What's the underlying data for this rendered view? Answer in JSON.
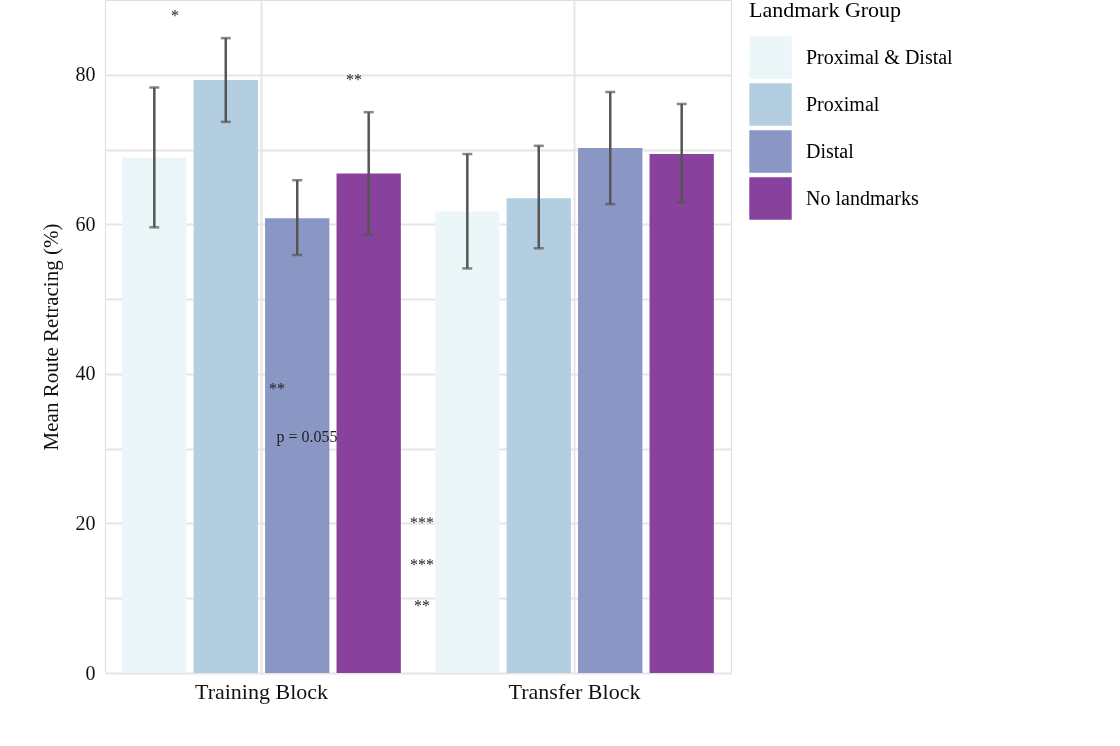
{
  "chart_data": {
    "type": "bar",
    "ylabel": "Mean Route Retracing (%)",
    "legend_title": "Landmark Group",
    "categories": [
      "Training Block",
      "Transfer Block"
    ],
    "series": [
      {
        "name": "Proximal & Distal",
        "color": "#ebf6f9",
        "values": [
          68.9,
          61.7
        ],
        "errors": [
          [
            59.6,
            78.3
          ],
          [
            54.1,
            69.4
          ]
        ]
      },
      {
        "name": "Proximal",
        "color": "#b3cde1",
        "values": [
          79.3,
          63.5
        ],
        "errors": [
          [
            73.7,
            84.9
          ],
          [
            56.8,
            70.5
          ]
        ]
      },
      {
        "name": "Distal",
        "color": "#8a96c4",
        "values": [
          60.8,
          70.2
        ],
        "errors": [
          [
            55.9,
            65.9
          ],
          [
            62.7,
            77.7
          ]
        ]
      },
      {
        "name": "No landmarks",
        "color": "#88419d",
        "values": [
          66.8,
          69.4
        ],
        "errors": [
          [
            58.6,
            75.0
          ],
          [
            62.9,
            76.1
          ]
        ]
      }
    ],
    "ylim": [
      0,
      90
    ],
    "yticks": [
      0,
      {
        "value": 10,
        "label": null
      },
      20,
      {
        "value": 30,
        "label": null
      },
      40,
      {
        "value": 50,
        "label": null
      },
      60,
      {
        "value": 70,
        "label": null
      },
      80
    ],
    "grid": true,
    "legend": "right",
    "annotations": [
      "*",
      "**",
      "**",
      "p = 0.055",
      "***",
      "***",
      "**"
    ]
  }
}
